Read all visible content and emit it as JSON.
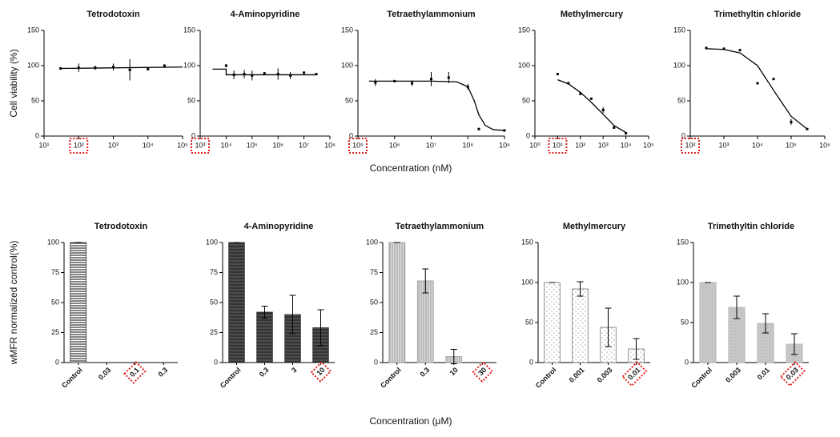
{
  "chart_data": [
    {
      "type": "scatter",
      "title": "Tetrodotoxin",
      "y_label": "Cell viability (%)",
      "log_x": true,
      "xlim": [
        10,
        100000
      ],
      "ylim": [
        0,
        150
      ],
      "xticks": [
        {
          "value": 10,
          "label": "10¹"
        },
        {
          "value": 100,
          "label": "10²"
        },
        {
          "value": 1000,
          "label": "10³"
        },
        {
          "value": 10000,
          "label": "10⁴"
        },
        {
          "value": 100000,
          "label": "10⁵"
        }
      ],
      "yticks": [
        0,
        50,
        100,
        150
      ],
      "highlight_xtick": 1,
      "points": {
        "x": [
          30,
          100,
          300,
          1000,
          3000,
          10000,
          30000
        ],
        "values": [
          96,
          97,
          97,
          98,
          94,
          95,
          100
        ],
        "errors": [
          0,
          6,
          3,
          5,
          15,
          0,
          0
        ]
      },
      "fit": {
        "x": [
          30,
          100000
        ],
        "values": [
          96,
          98
        ]
      }
    },
    {
      "type": "scatter",
      "title": "4-Aminopyridine",
      "log_x": true,
      "xlim": [
        1000,
        100000000
      ],
      "ylim": [
        0,
        150
      ],
      "xticks": [
        {
          "value": 1000,
          "label": "10³"
        },
        {
          "value": 10000,
          "label": "10⁴"
        },
        {
          "value": 100000,
          "label": "10⁵"
        },
        {
          "value": 1000000,
          "label": "10⁶"
        },
        {
          "value": 10000000,
          "label": "10⁷"
        },
        {
          "value": 100000000,
          "label": "10⁸"
        }
      ],
      "yticks": [
        0,
        50,
        100,
        150
      ],
      "highlight_xtick": 0,
      "points": {
        "x": [
          10000,
          20000,
          50000,
          100000,
          300000,
          1000000,
          3000000,
          10000000,
          30000000
        ],
        "values": [
          100,
          87,
          88,
          86,
          89,
          88,
          86,
          90,
          88
        ],
        "errors": [
          2,
          6,
          6,
          7,
          0,
          8,
          5,
          0,
          0
        ]
      },
      "fit": {
        "x": [
          3000,
          10000,
          10000,
          30000000
        ],
        "values": [
          95,
          95,
          87,
          87
        ]
      }
    },
    {
      "type": "scatter",
      "title": "Tetraethylammonium",
      "x_label": "Concentration (nM)",
      "log_x": true,
      "xlim": [
        100000,
        1000000000
      ],
      "ylim": [
        0,
        150
      ],
      "xticks": [
        {
          "value": 100000,
          "label": "10⁵"
        },
        {
          "value": 1000000,
          "label": "10⁶"
        },
        {
          "value": 10000000,
          "label": "10⁷"
        },
        {
          "value": 100000000,
          "label": "10⁸"
        },
        {
          "value": 1000000000,
          "label": "10⁹"
        }
      ],
      "yticks": [
        0,
        50,
        100,
        150
      ],
      "highlight_xtick": 0,
      "points": {
        "x": [
          300000,
          1000000,
          3000000,
          10000000,
          30000000,
          100000000,
          200000000,
          1000000000
        ],
        "values": [
          76,
          78,
          75,
          81,
          83,
          70,
          10,
          8
        ],
        "errors": [
          5,
          0,
          4,
          10,
          8,
          4,
          0,
          0
        ]
      },
      "fit": {
        "x": [
          200000,
          1000000,
          10000000,
          50000000,
          100000000,
          150000000,
          200000000,
          300000000,
          500000000,
          1000000000
        ],
        "values": [
          78,
          78,
          78,
          77,
          70,
          50,
          30,
          15,
          9,
          8
        ]
      }
    },
    {
      "type": "scatter",
      "title": "Methylmercury",
      "log_x": true,
      "xlim": [
        1,
        100000
      ],
      "ylim": [
        0,
        150
      ],
      "xticks": [
        {
          "value": 1,
          "label": "10⁰"
        },
        {
          "value": 10,
          "label": "10¹"
        },
        {
          "value": 100,
          "label": "10²"
        },
        {
          "value": 1000,
          "label": "10³"
        },
        {
          "value": 10000,
          "label": "10⁴"
        },
        {
          "value": 100000,
          "label": "10⁵"
        }
      ],
      "yticks": [
        0,
        50,
        100,
        150
      ],
      "highlight_xtick": 1,
      "points": {
        "x": [
          10,
          30,
          100,
          300,
          1000,
          3000,
          10000
        ],
        "values": [
          88,
          75,
          60,
          53,
          37,
          12,
          4
        ],
        "errors": [
          0,
          0,
          0,
          0,
          4,
          0,
          2
        ]
      },
      "fit": {
        "x": [
          10,
          30,
          100,
          300,
          1000,
          3000,
          10000
        ],
        "values": [
          80,
          74,
          62,
          48,
          31,
          15,
          5
        ]
      }
    },
    {
      "type": "scatter",
      "title": "Trimethyltin chloride",
      "log_x": true,
      "xlim": [
        100,
        1000000
      ],
      "ylim": [
        0,
        150
      ],
      "xticks": [
        {
          "value": 100,
          "label": "10²"
        },
        {
          "value": 1000,
          "label": "10³"
        },
        {
          "value": 10000,
          "label": "10⁴"
        },
        {
          "value": 100000,
          "label": "10⁵"
        },
        {
          "value": 1000000,
          "label": "10⁶"
        }
      ],
      "yticks": [
        0,
        50,
        100,
        150
      ],
      "highlight_xtick": 0,
      "points": {
        "x": [
          300,
          1000,
          3000,
          10000,
          30000,
          100000,
          300000
        ],
        "values": [
          125,
          124,
          122,
          75,
          81,
          20,
          10
        ],
        "errors": [
          2,
          0,
          0,
          0,
          0,
          4,
          0
        ]
      },
      "fit": {
        "x": [
          300,
          1000,
          3000,
          10000,
          30000,
          100000,
          300000
        ],
        "values": [
          124,
          123,
          118,
          100,
          65,
          28,
          10
        ]
      }
    },
    {
      "type": "bar",
      "title": "Tetrodotoxin",
      "y_label": "wMFR normalized control(%)",
      "categories": [
        "Control",
        "0.03",
        "0.1",
        "0.3"
      ],
      "values": [
        100,
        0,
        0,
        0
      ],
      "errors": [
        0,
        0,
        0,
        0
      ],
      "ylim": [
        0,
        100
      ],
      "yticks": [
        0,
        25,
        50,
        75,
        100
      ],
      "pattern": "hstripe",
      "color": "#333333",
      "highlight_category": 2
    },
    {
      "type": "bar",
      "title": "4-Aminopyridine",
      "categories": [
        "Control",
        "0.3",
        "3",
        "10"
      ],
      "values": [
        100,
        42,
        40,
        29
      ],
      "errors": [
        0,
        5,
        16,
        15
      ],
      "ylim": [
        0,
        100
      ],
      "yticks": [
        0,
        25,
        50,
        75,
        100
      ],
      "pattern": "dark",
      "color": "#222222",
      "highlight_category": 3
    },
    {
      "type": "bar",
      "title": "Tetraethylammonium",
      "x_label": "Concentration (μM)",
      "categories": [
        "Control",
        "0.3",
        "10",
        "30"
      ],
      "values": [
        100,
        68,
        5,
        0
      ],
      "errors": [
        0,
        10,
        6,
        0
      ],
      "ylim": [
        0,
        100
      ],
      "yticks": [
        0,
        25,
        50,
        75,
        100
      ],
      "pattern": "vstripe",
      "color": "#999999",
      "highlight_category": 3
    },
    {
      "type": "bar",
      "title": "Methylmercury",
      "categories": [
        "Control",
        "0.001",
        "0.003",
        "0.01"
      ],
      "values": [
        100,
        92,
        44,
        17
      ],
      "errors": [
        0,
        9,
        24,
        13
      ],
      "ylim": [
        0,
        150
      ],
      "yticks": [
        0,
        50,
        100,
        150
      ],
      "pattern": "dots",
      "color": "#777777",
      "highlight_category": 3
    },
    {
      "type": "bar",
      "title": "Trimethyltin chloride",
      "categories": [
        "Control",
        "0.003",
        "0.01",
        "0.03"
      ],
      "values": [
        100,
        69,
        49,
        23
      ],
      "errors": [
        0,
        14,
        12,
        13
      ],
      "ylim": [
        0,
        150
      ],
      "yticks": [
        0,
        50,
        100,
        150
      ],
      "pattern": "gray",
      "color": "#b0b0b0",
      "highlight_category": 3
    }
  ]
}
